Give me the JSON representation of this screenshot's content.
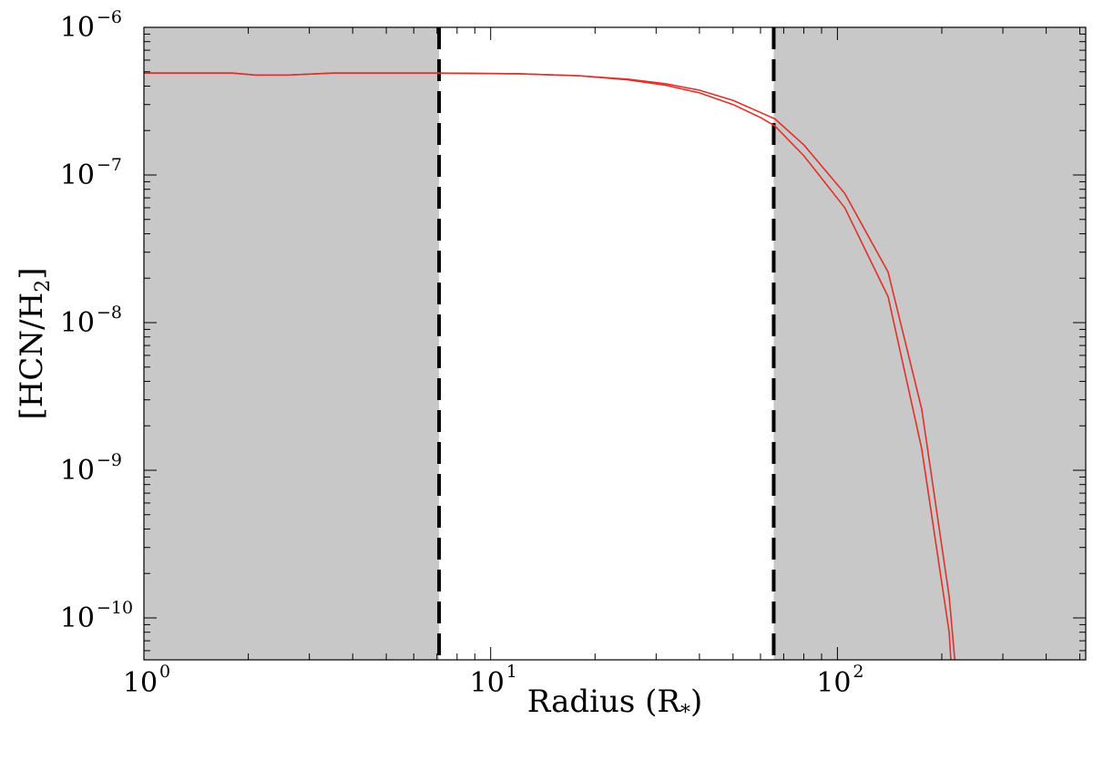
{
  "chart_data": {
    "type": "line",
    "xlabel": {
      "main": "Radius (R",
      "sub": "*",
      "close": ")"
    },
    "ylabel": {
      "main": "[HCN/H",
      "sub": "2",
      "close": "]"
    },
    "x_scale": "log",
    "y_scale": "log",
    "xlim": [
      1,
      520
    ],
    "ylim": [
      5.2e-11,
      1e-06
    ],
    "x_ticks": [
      {
        "value": 1,
        "base": "10",
        "exp": "0"
      },
      {
        "value": 10,
        "base": "10",
        "exp": "1"
      },
      {
        "value": 100,
        "base": "10",
        "exp": "2"
      }
    ],
    "y_ticks": [
      {
        "value": 1e-06,
        "base": "10",
        "exp": "−6"
      },
      {
        "value": 1e-07,
        "base": "10",
        "exp": "−7"
      },
      {
        "value": 1e-08,
        "base": "10",
        "exp": "−8"
      },
      {
        "value": 1e-09,
        "base": "10",
        "exp": "−9"
      },
      {
        "value": 1e-10,
        "base": "10",
        "exp": "−10"
      }
    ],
    "shaded_regions": [
      {
        "x0": 1,
        "x1": 7.1,
        "color": "#c8c8c8"
      },
      {
        "x0": 65.5,
        "x1": 520,
        "color": "#c8c8c8"
      }
    ],
    "vertical_lines": [
      {
        "x": 7.1,
        "style": "dashed",
        "color": "#000000"
      },
      {
        "x": 65.5,
        "style": "dashed",
        "color": "#000000"
      }
    ],
    "series": [
      {
        "color": "#e0302a",
        "points": [
          [
            1,
            4.9e-07
          ],
          [
            1.8,
            4.9e-07
          ],
          [
            2.1,
            4.75e-07
          ],
          [
            2.6,
            4.75e-07
          ],
          [
            3.5,
            4.9e-07
          ],
          [
            7,
            4.9e-07
          ],
          [
            12,
            4.85e-07
          ],
          [
            18,
            4.7e-07
          ],
          [
            25,
            4.45e-07
          ],
          [
            32,
            4.15e-07
          ],
          [
            40,
            3.75e-07
          ],
          [
            50,
            3.2e-07
          ],
          [
            60,
            2.65e-07
          ],
          [
            66,
            2.4e-07
          ],
          [
            80,
            1.6e-07
          ],
          [
            105,
            7.5e-08
          ],
          [
            140,
            2.2e-08
          ],
          [
            175,
            2.6e-09
          ],
          [
            210,
            1.4e-10
          ],
          [
            232,
            1e-11
          ]
        ]
      },
      {
        "color": "#e0302a",
        "points": [
          [
            1,
            4.9e-07
          ],
          [
            1.8,
            4.9e-07
          ],
          [
            2.1,
            4.75e-07
          ],
          [
            2.6,
            4.75e-07
          ],
          [
            3.5,
            4.9e-07
          ],
          [
            7,
            4.9e-07
          ],
          [
            12,
            4.85e-07
          ],
          [
            18,
            4.7e-07
          ],
          [
            25,
            4.4e-07
          ],
          [
            32,
            4.05e-07
          ],
          [
            40,
            3.6e-07
          ],
          [
            50,
            3e-07
          ],
          [
            60,
            2.45e-07
          ],
          [
            66,
            2.15e-07
          ],
          [
            80,
            1.35e-07
          ],
          [
            105,
            6e-08
          ],
          [
            140,
            1.5e-08
          ],
          [
            175,
            1.4e-09
          ],
          [
            210,
            8e-11
          ],
          [
            222,
            1e-11
          ]
        ]
      }
    ]
  }
}
